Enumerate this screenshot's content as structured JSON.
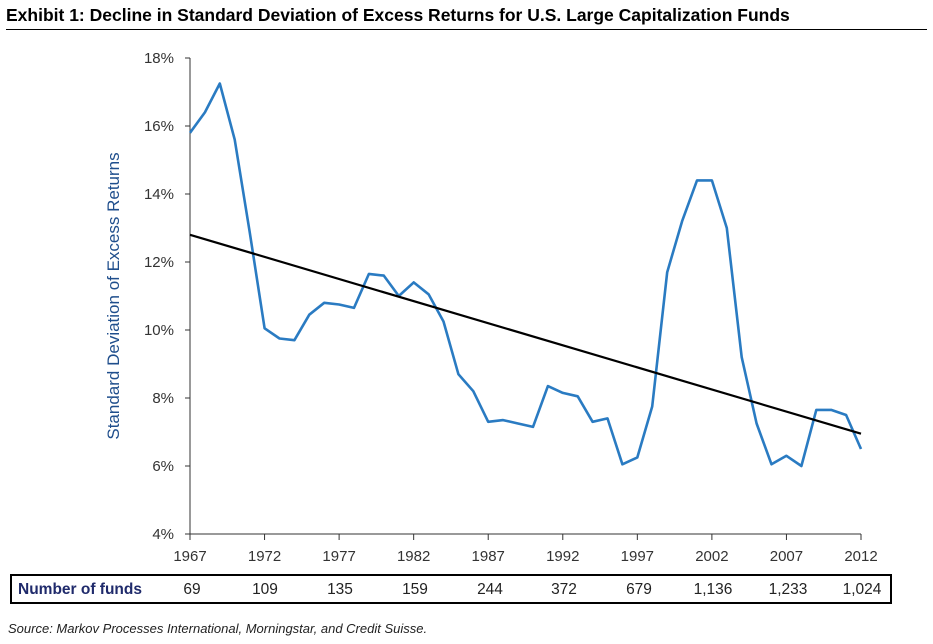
{
  "title": "Exhibit 1: Decline in Standard Deviation of Excess Returns for U.S. Large Capitalization Funds",
  "source": "Source: Markov Processes International, Morningstar, and Credit Suisse.",
  "colors": {
    "series": "#2a7bc2",
    "trend": "#000000",
    "axis": "#333333",
    "ylabel": "#1f4e8c"
  },
  "chart_data": {
    "type": "line",
    "title": "",
    "xlabel": "",
    "ylabel": "Standard Deviation of Excess Returns",
    "xlim": [
      1967,
      2012
    ],
    "ylim": [
      4,
      18
    ],
    "y_ticks": [
      "4%",
      "6%",
      "8%",
      "10%",
      "12%",
      "14%",
      "16%",
      "18%"
    ],
    "x_ticks": [
      "1967",
      "1972",
      "1977",
      "1982",
      "1987",
      "1992",
      "1997",
      "2002",
      "2007",
      "2012"
    ],
    "grid": false,
    "legend": "none",
    "series": [
      {
        "x": [
          1967,
          1968,
          1969,
          1970,
          1971,
          1972,
          1973,
          1974,
          1975,
          1976,
          1977,
          1978,
          1979,
          1980,
          1981,
          1982,
          1983,
          1984,
          1985,
          1986,
          1987,
          1988,
          1989,
          1990,
          1991,
          1992,
          1993,
          1994,
          1995,
          1996,
          1997,
          1998,
          1999,
          2000,
          2001,
          2002,
          2003,
          2004,
          2005,
          2006,
          2007,
          2008,
          2009,
          2010,
          2011,
          2012
        ],
        "values": [
          15.8,
          16.4,
          17.25,
          15.6,
          12.9,
          10.05,
          9.75,
          9.7,
          10.45,
          10.8,
          10.75,
          10.65,
          11.65,
          11.6,
          11.0,
          11.4,
          11.05,
          10.25,
          8.7,
          8.2,
          7.3,
          7.35,
          7.25,
          7.15,
          8.35,
          8.15,
          8.05,
          7.3,
          7.4,
          6.05,
          6.25,
          7.75,
          11.7,
          13.2,
          14.4,
          14.4,
          13.0,
          9.2,
          7.25,
          6.05,
          6.3,
          6.0,
          7.65,
          7.65,
          7.5,
          6.5
        ]
      },
      {
        "x": [
          1967,
          2012
        ],
        "values": [
          12.8,
          6.95
        ]
      }
    ],
    "table": {
      "label": "Number of funds",
      "values": [
        "69",
        "109",
        "135",
        "159",
        "244",
        "372",
        "679",
        "1,136",
        "1,233",
        "1,024"
      ]
    }
  }
}
